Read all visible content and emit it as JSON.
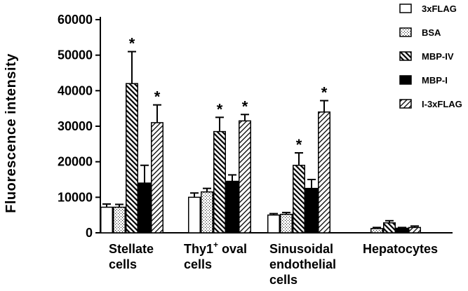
{
  "chart_data": {
    "type": "bar",
    "ylabel": "Fluorescence intensity",
    "ylim": [
      0,
      60000
    ],
    "yticks": [
      "0",
      "10000",
      "20000",
      "30000",
      "40000",
      "50000",
      "60000"
    ],
    "yticks_values": [
      0,
      10000,
      20000,
      30000,
      40000,
      50000,
      60000
    ],
    "categories": [
      {
        "lines": [
          "Stellate",
          "cells"
        ],
        "sup": ""
      },
      {
        "lines": [
          "Thy1",
          "cells"
        ],
        "sup": "+",
        "suffix": " oval"
      },
      {
        "lines": [
          "Sinusoidal",
          "endothelial",
          "cells"
        ],
        "sup": ""
      },
      {
        "lines": [
          "Hepatocytes"
        ],
        "sup": ""
      }
    ],
    "series": [
      {
        "name": "3xFLAG",
        "pattern": "white",
        "values": [
          7200,
          10000,
          5000,
          0
        ],
        "errors": [
          900,
          1200,
          400,
          0
        ]
      },
      {
        "name": "BSA",
        "pattern": "dots",
        "values": [
          7200,
          11500,
          5200,
          1200
        ],
        "errors": [
          800,
          1000,
          500,
          300
        ]
      },
      {
        "name": "MBP-IV",
        "pattern": "diag-dense",
        "values": [
          42000,
          28500,
          19000,
          2800
        ],
        "errors": [
          9000,
          4000,
          3500,
          600
        ]
      },
      {
        "name": "MBP-I",
        "pattern": "black",
        "values": [
          14000,
          14500,
          12500,
          1300
        ],
        "errors": [
          5000,
          1800,
          2500,
          200
        ]
      },
      {
        "name": "I-3xFLAG",
        "pattern": "diag-sparse",
        "values": [
          31000,
          31500,
          34000,
          1500
        ],
        "errors": [
          5000,
          1800,
          3200,
          400
        ]
      }
    ],
    "significance": [
      {
        "category": 0,
        "series": 2,
        "label": "*"
      },
      {
        "category": 0,
        "series": 4,
        "label": "*"
      },
      {
        "category": 1,
        "series": 2,
        "label": "*"
      },
      {
        "category": 1,
        "series": 4,
        "label": "*"
      },
      {
        "category": 2,
        "series": 2,
        "label": "*"
      },
      {
        "category": 2,
        "series": 4,
        "label": "*"
      }
    ],
    "legend_position": "top-right"
  }
}
